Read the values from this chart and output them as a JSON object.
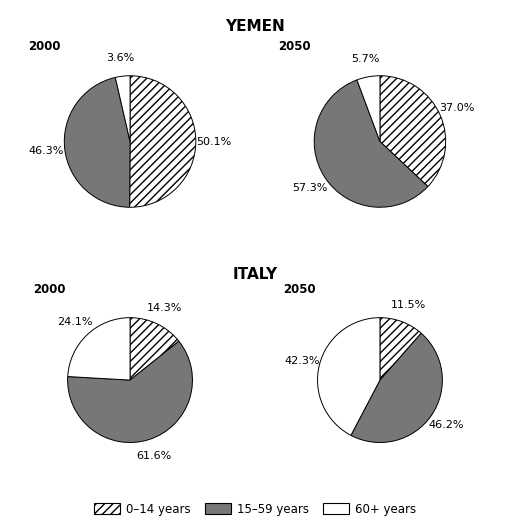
{
  "title_yemen": "YEMEN",
  "title_italy": "ITALY",
  "charts": {
    "yemen_2000": {
      "label": "2000",
      "values": [
        50.1,
        46.3,
        3.6
      ],
      "labels": [
        "50.1%",
        "46.3%",
        "3.6%"
      ],
      "label_angles": [
        45,
        180,
        90
      ],
      "label_radii": [
        1.2,
        1.2,
        1.3
      ]
    },
    "yemen_2050": {
      "label": "2050",
      "values": [
        37.0,
        57.3,
        5.7
      ],
      "labels": [
        "37.0%",
        "57.3%",
        "5.7%"
      ],
      "label_angles": [
        18.5,
        198.65,
        91.4
      ],
      "label_radii": [
        1.25,
        1.2,
        1.3
      ]
    },
    "italy_2000": {
      "label": "2000",
      "values": [
        14.3,
        61.6,
        24.1
      ],
      "labels": [
        "14.3%",
        "61.6%",
        "24.1%"
      ],
      "label_angles": [
        64.26,
        270,
        180
      ],
      "label_radii": [
        1.3,
        1.25,
        1.25
      ]
    },
    "italy_2050": {
      "label": "2050",
      "values": [
        11.5,
        46.2,
        42.3
      ],
      "labels": [
        "11.5%",
        "46.2%",
        "42.3%"
      ],
      "label_angles": [
        54.9,
        310,
        180
      ],
      "label_radii": [
        1.3,
        1.25,
        1.25
      ]
    }
  },
  "hatch_0_14": "////",
  "color_0_14": "white",
  "color_15_59": "#777777",
  "color_60plus": "white",
  "edgecolor": "black",
  "legend_labels": [
    "0–14 years",
    "15–59 years",
    "60+ years"
  ],
  "label_fontsize": 8,
  "title_fontsize": 11,
  "year_fontsize": 8.5,
  "startangle": 90,
  "counterclock": false
}
